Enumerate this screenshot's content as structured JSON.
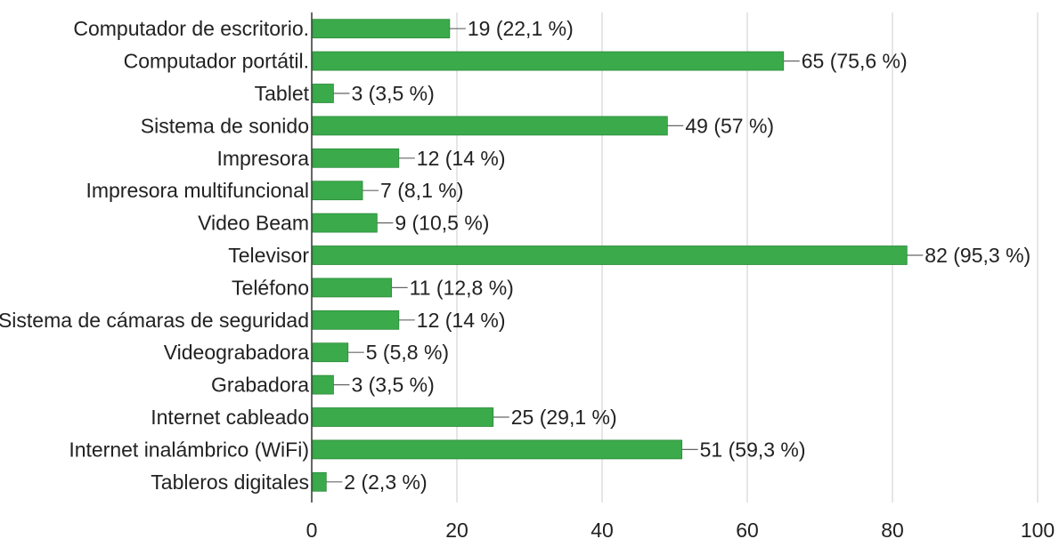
{
  "chart_data": {
    "type": "bar",
    "orientation": "horizontal",
    "categories": [
      "Computador de escritorio.",
      "Computador portátil.",
      "Tablet",
      "Sistema de sonido",
      "Impresora",
      "Impresora multifuncional",
      "Video Beam",
      "Televisor",
      "Teléfono",
      "Sistema de cámaras de seguridad",
      "Videograbadora",
      "Grabadora",
      "Internet cableado",
      "Internet inalámbrico (WiFi)",
      "Tableros digitales"
    ],
    "values": [
      19,
      65,
      3,
      49,
      12,
      7,
      9,
      82,
      11,
      12,
      5,
      3,
      25,
      51,
      2
    ],
    "data_labels": [
      "19 (22,1 %)",
      "65 (75,6 %)",
      "3 (3,5 %)",
      "49 (57 %)",
      "12 (14 %)",
      "7 (8,1 %)",
      "9 (10,5 %)",
      "82 (95,3 %)",
      "11 (12,8 %)",
      "12 (14 %)",
      "5 (5,8 %)",
      "3 (3,5 %)",
      "25 (29,1 %)",
      "51 (59,3 %)",
      "2 (2,3 %)"
    ],
    "xlim": [
      0,
      100
    ],
    "xticks": [
      "0",
      "20",
      "40",
      "60",
      "80",
      "100"
    ],
    "grid": "vertical",
    "title": "",
    "xlabel": "",
    "ylabel": "",
    "colors": {
      "bar": "#3aaa4a",
      "bar_edge": "#2e8b3c",
      "grid": "#cccccc",
      "axis": "#333333",
      "leader": "#666666"
    }
  }
}
